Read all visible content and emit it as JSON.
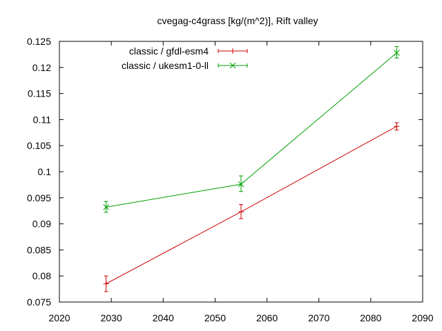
{
  "chart_data": {
    "type": "line",
    "title": "cvegag-c4grass [kg/(m^2)], Rift valley",
    "xlabel": "",
    "ylabel": "",
    "xlim": [
      2020,
      2090
    ],
    "ylim": [
      0.075,
      0.125
    ],
    "x_ticks": [
      2020,
      2030,
      2040,
      2050,
      2060,
      2070,
      2080,
      2090
    ],
    "y_ticks": [
      0.075,
      0.08,
      0.085,
      0.09,
      0.095,
      0.1,
      0.105,
      0.11,
      0.115,
      0.12,
      0.125
    ],
    "x_tick_labels": [
      "2020",
      "2030",
      "2040",
      "2050",
      "2060",
      "2070",
      "2080",
      "2090"
    ],
    "y_tick_labels": [
      "0.075",
      "0.08",
      "0.085",
      "0.09",
      "0.095",
      "0.1",
      "0.105",
      "0.11",
      "0.115",
      "0.12",
      "0.125"
    ],
    "grid": false,
    "legend_position": "top-left",
    "series": [
      {
        "name": "classic / gfdl-esm4",
        "color": "#cc0000",
        "marker": "plus",
        "x": [
          2029,
          2055,
          2085
        ],
        "y": [
          0.0785,
          0.0923,
          0.1087
        ],
        "err_low": [
          0.077,
          0.091,
          0.108
        ],
        "err_high": [
          0.08,
          0.0937,
          0.1094
        ]
      },
      {
        "name": "classic / ukesm1-0-ll",
        "color": "#00a000",
        "marker": "cross",
        "x": [
          2029,
          2055,
          2085
        ],
        "y": [
          0.0932,
          0.0976,
          0.1228
        ],
        "err_low": [
          0.0922,
          0.0962,
          0.1218
        ],
        "err_high": [
          0.0943,
          0.0992,
          0.124
        ]
      }
    ]
  }
}
